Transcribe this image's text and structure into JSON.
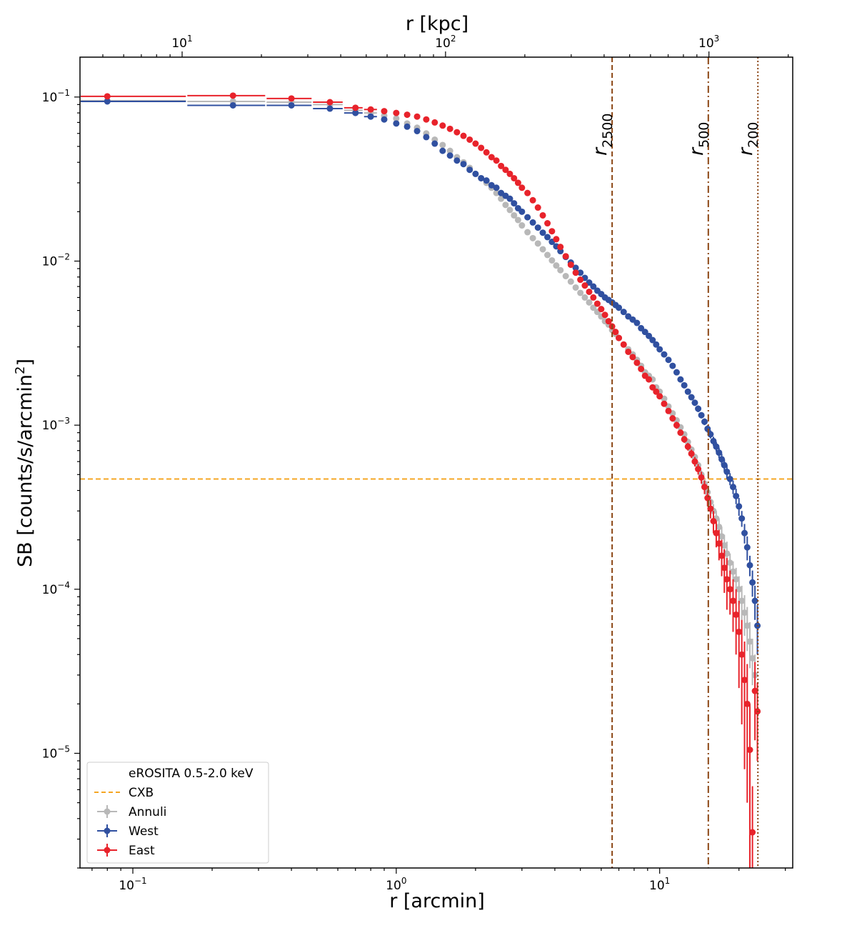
{
  "chart_data": {
    "type": "scatter",
    "xlabel": "r [arcmin]",
    "x2label": "r [kpc]",
    "ylabel_main": "SB [counts/s/arcmin",
    "ylabel_sup": "2",
    "ylabel_end": "]",
    "xscale": "log",
    "yscale": "log",
    "xlim": [
      0.063,
      32
    ],
    "ylim": [
      2e-06,
      0.175
    ],
    "x_ticks": [
      {
        "value": 0.1,
        "base": "10",
        "exp": "−1"
      },
      {
        "value": 1,
        "base": "10",
        "exp": "0"
      },
      {
        "value": 10,
        "base": "10",
        "exp": "1"
      }
    ],
    "y_ticks": [
      {
        "value": 0.1,
        "base": "10",
        "exp": "−1"
      },
      {
        "value": 0.01,
        "base": "10",
        "exp": "−2"
      },
      {
        "value": 0.001,
        "base": "10",
        "exp": "−3"
      },
      {
        "value": 0.0001,
        "base": "10",
        "exp": "−4"
      },
      {
        "value": 1e-05,
        "base": "10",
        "exp": "−5"
      }
    ],
    "top_axis_kpc_per_arcmin": 65,
    "top_ticks": [
      {
        "value": 10,
        "base": "10",
        "exp": "1"
      },
      {
        "value": 100,
        "base": "10",
        "exp": "2"
      },
      {
        "value": 1000,
        "base": "10",
        "exp": "3"
      }
    ],
    "cxb_level": 0.00047,
    "vlines": [
      {
        "name": "r2500",
        "label_main": "r",
        "label_sub": "2500",
        "x": 6.6,
        "style": "dashed"
      },
      {
        "name": "r500",
        "label_main": "r",
        "label_sub": "500",
        "x": 15.3,
        "style": "dashdot"
      },
      {
        "name": "r200",
        "label_main": "r",
        "label_sub": "200",
        "x": 23.6,
        "style": "dotted"
      }
    ],
    "legend": {
      "title": "eROSITA 0.5-2.0 keV",
      "position": "lower left",
      "entries": [
        {
          "key": "cxb",
          "label": "CXB"
        },
        {
          "key": "annuli",
          "label": "Annuli"
        },
        {
          "key": "west",
          "label": "West"
        },
        {
          "key": "east",
          "label": "East"
        }
      ]
    },
    "colors": {
      "cxb": "#f5a623",
      "annuli": "#b8b8b8",
      "west": "#3050a0",
      "east": "#e8232b",
      "vline": "#8b4513"
    },
    "series": [
      {
        "name": "Annuli",
        "key": "annuli",
        "x": [
          0.08,
          0.24,
          0.4,
          0.56,
          0.7,
          0.8,
          0.9,
          1.0,
          1.1,
          1.2,
          1.3,
          1.4,
          1.5,
          1.6,
          1.7,
          1.8,
          1.9,
          2.0,
          2.1,
          2.2,
          2.3,
          2.4,
          2.5,
          2.6,
          2.7,
          2.8,
          2.9,
          3.0,
          3.15,
          3.3,
          3.45,
          3.6,
          3.75,
          3.9,
          4.05,
          4.2,
          4.4,
          4.6,
          4.8,
          5.0,
          5.2,
          5.4,
          5.6,
          5.8,
          6.0,
          6.2,
          6.4,
          6.6,
          6.8,
          7.0,
          7.3,
          7.6,
          7.9,
          8.2,
          8.5,
          8.8,
          9.1,
          9.4,
          9.7,
          10.0,
          10.4,
          10.8,
          11.2,
          11.6,
          12.0,
          12.4,
          12.8,
          13.2,
          13.6,
          14.0,
          14.4,
          14.8,
          15.2,
          15.6,
          16.0,
          16.4,
          16.8,
          17.2,
          17.6,
          18.0,
          18.5,
          19.0,
          19.5,
          20.0,
          20.5,
          21.0,
          21.5,
          22.0,
          22.5,
          23.0,
          23.5
        ],
        "y": [
          0.095,
          0.094,
          0.093,
          0.09,
          0.083,
          0.08,
          0.077,
          0.074,
          0.069,
          0.065,
          0.06,
          0.055,
          0.051,
          0.047,
          0.043,
          0.04,
          0.037,
          0.034,
          0.032,
          0.03,
          0.028,
          0.026,
          0.024,
          0.022,
          0.0205,
          0.019,
          0.0178,
          0.0165,
          0.015,
          0.0138,
          0.0128,
          0.0118,
          0.0109,
          0.0101,
          0.0094,
          0.0088,
          0.0081,
          0.0075,
          0.0069,
          0.0064,
          0.006,
          0.0056,
          0.0052,
          0.0049,
          0.0046,
          0.0043,
          0.0041,
          0.0038,
          0.0036,
          0.0034,
          0.0031,
          0.0029,
          0.0027,
          0.0025,
          0.0023,
          0.0021,
          0.002,
          0.0019,
          0.0017,
          0.0016,
          0.00145,
          0.0013,
          0.00118,
          0.00107,
          0.00097,
          0.00088,
          0.00079,
          0.00071,
          0.00064,
          0.00057,
          0.0005,
          0.00044,
          0.00039,
          0.00034,
          0.0003,
          0.00027,
          0.00024,
          0.00021,
          0.000185,
          0.000165,
          0.000145,
          0.000128,
          0.000115,
          0.0001,
          8.5e-05,
          7.2e-05,
          6e-05,
          4.8e-05,
          3.8e-05,
          3e-05,
          1.8e-05
        ],
        "yerr": [
          0.003,
          0.002,
          0.002,
          0.002,
          0.0015,
          0.0015,
          0.0012,
          0.0012,
          0.001,
          0.001,
          0.001,
          0.0009,
          0.0008,
          0.0007,
          0.0007,
          0.0006,
          0.0006,
          0.0005,
          0.0005,
          0.0005,
          0.0004,
          0.0004,
          0.0004,
          0.0003,
          0.0003,
          0.0003,
          0.0003,
          0.0003,
          0.0002,
          0.0002,
          0.0002,
          0.0002,
          0.0002,
          0.00015,
          0.00015,
          0.00015,
          0.00012,
          0.00012,
          0.0001,
          0.0001,
          0.0001,
          9e-05,
          9e-05,
          8e-05,
          8e-05,
          7e-05,
          7e-05,
          7e-05,
          6e-05,
          6e-05,
          5e-05,
          5e-05,
          5e-05,
          5e-05,
          4e-05,
          4e-05,
          4e-05,
          4e-05,
          4e-05,
          4e-05,
          4e-05,
          4e-05,
          4e-05,
          4e-05,
          4e-05,
          4e-05,
          4e-05,
          3e-05,
          3e-05,
          3e-05,
          3e-05,
          3e-05,
          3e-05,
          3e-05,
          3e-05,
          3e-05,
          3e-05,
          3e-05,
          3e-05,
          3e-05,
          2e-05,
          2e-05,
          2e-05,
          2e-05,
          2e-05,
          2e-05,
          1.8e-05,
          1.5e-05,
          1.2e-05,
          1e-05,
          8e-06
        ]
      },
      {
        "name": "West",
        "key": "west",
        "x": [
          0.08,
          0.24,
          0.4,
          0.56,
          0.7,
          0.8,
          0.9,
          1.0,
          1.1,
          1.2,
          1.3,
          1.4,
          1.5,
          1.6,
          1.7,
          1.8,
          1.9,
          2.0,
          2.1,
          2.2,
          2.3,
          2.4,
          2.5,
          2.6,
          2.7,
          2.8,
          2.9,
          3.0,
          3.15,
          3.3,
          3.45,
          3.6,
          3.75,
          3.9,
          4.05,
          4.2,
          4.4,
          4.6,
          4.8,
          5.0,
          5.2,
          5.4,
          5.6,
          5.8,
          6.0,
          6.2,
          6.4,
          6.6,
          6.8,
          7.0,
          7.3,
          7.6,
          7.9,
          8.2,
          8.5,
          8.8,
          9.1,
          9.4,
          9.7,
          10.0,
          10.4,
          10.8,
          11.2,
          11.6,
          12.0,
          12.4,
          12.8,
          13.2,
          13.6,
          14.0,
          14.4,
          14.8,
          15.2,
          15.6,
          16.0,
          16.4,
          16.8,
          17.2,
          17.6,
          18.0,
          18.5,
          19.0,
          19.5,
          20.0,
          20.5,
          21.0,
          21.5,
          22.0,
          22.5,
          23.0,
          23.5
        ],
        "y": [
          0.094,
          0.089,
          0.089,
          0.085,
          0.08,
          0.076,
          0.073,
          0.069,
          0.066,
          0.062,
          0.057,
          0.052,
          0.047,
          0.044,
          0.041,
          0.039,
          0.036,
          0.034,
          0.032,
          0.031,
          0.029,
          0.028,
          0.026,
          0.025,
          0.024,
          0.0225,
          0.021,
          0.02,
          0.0185,
          0.0172,
          0.016,
          0.0149,
          0.014,
          0.0131,
          0.0123,
          0.0115,
          0.0106,
          0.0098,
          0.0091,
          0.0085,
          0.0079,
          0.0074,
          0.007,
          0.0066,
          0.0063,
          0.006,
          0.0058,
          0.0056,
          0.0054,
          0.0052,
          0.0049,
          0.0046,
          0.0044,
          0.0042,
          0.0039,
          0.0037,
          0.0035,
          0.0033,
          0.0031,
          0.0029,
          0.0027,
          0.0025,
          0.0023,
          0.0021,
          0.0019,
          0.00175,
          0.0016,
          0.00148,
          0.00137,
          0.00126,
          0.00115,
          0.00105,
          0.00095,
          0.00088,
          0.0008,
          0.00074,
          0.00068,
          0.00062,
          0.00057,
          0.00052,
          0.00047,
          0.00042,
          0.00037,
          0.00032,
          0.00027,
          0.00022,
          0.00018,
          0.00014,
          0.00011,
          8.5e-05,
          6e-05
        ],
        "yerr": [
          0.003,
          0.002,
          0.002,
          0.002,
          0.0015,
          0.0015,
          0.0013,
          0.0012,
          0.0011,
          0.001,
          0.001,
          0.0009,
          0.0009,
          0.0008,
          0.0008,
          0.0007,
          0.0007,
          0.0006,
          0.0006,
          0.0006,
          0.0005,
          0.0005,
          0.0005,
          0.0005,
          0.0004,
          0.0004,
          0.0004,
          0.0004,
          0.0003,
          0.0003,
          0.0003,
          0.0003,
          0.0003,
          0.0003,
          0.00025,
          0.00025,
          0.0002,
          0.0002,
          0.0002,
          0.0002,
          0.00018,
          0.00017,
          0.00016,
          0.00015,
          0.00014,
          0.00013,
          0.00012,
          0.00012,
          0.00011,
          0.00011,
          0.0001,
          0.0001,
          0.0001,
          9e-05,
          9e-05,
          8e-05,
          8e-05,
          8e-05,
          8e-05,
          7e-05,
          7e-05,
          7e-05,
          7e-05,
          7e-05,
          6e-05,
          6e-05,
          6e-05,
          6e-05,
          6e-05,
          6e-05,
          5e-05,
          5e-05,
          5e-05,
          5e-05,
          5e-05,
          5e-05,
          5e-05,
          5e-05,
          5e-05,
          5e-05,
          4e-05,
          4e-05,
          4e-05,
          4e-05,
          3e-05,
          3e-05,
          3e-05,
          2e-05,
          2e-05,
          2e-05,
          2e-05
        ]
      },
      {
        "name": "East",
        "key": "east",
        "x": [
          0.08,
          0.24,
          0.4,
          0.56,
          0.7,
          0.8,
          0.9,
          1.0,
          1.1,
          1.2,
          1.3,
          1.4,
          1.5,
          1.6,
          1.7,
          1.8,
          1.9,
          2.0,
          2.1,
          2.2,
          2.3,
          2.4,
          2.5,
          2.6,
          2.7,
          2.8,
          2.9,
          3.0,
          3.15,
          3.3,
          3.45,
          3.6,
          3.75,
          3.9,
          4.05,
          4.2,
          4.4,
          4.6,
          4.8,
          5.0,
          5.2,
          5.4,
          5.6,
          5.8,
          6.0,
          6.2,
          6.4,
          6.6,
          6.8,
          7.0,
          7.3,
          7.6,
          7.9,
          8.2,
          8.5,
          8.8,
          9.1,
          9.4,
          9.7,
          10.0,
          10.4,
          10.8,
          11.2,
          11.6,
          12.0,
          12.4,
          12.8,
          13.2,
          13.6,
          14.0,
          14.4,
          14.8,
          15.2,
          15.6,
          16.0,
          16.4,
          16.8,
          17.2,
          17.6,
          18.0,
          18.5,
          19.0,
          19.5,
          20.0,
          20.5,
          21.0,
          21.5,
          22.0,
          22.5,
          23.0,
          23.5
        ],
        "y": [
          0.101,
          0.102,
          0.098,
          0.093,
          0.086,
          0.084,
          0.082,
          0.08,
          0.078,
          0.076,
          0.073,
          0.07,
          0.067,
          0.064,
          0.061,
          0.058,
          0.055,
          0.052,
          0.049,
          0.046,
          0.043,
          0.041,
          0.038,
          0.036,
          0.034,
          0.032,
          0.03,
          0.028,
          0.026,
          0.0235,
          0.0212,
          0.019,
          0.017,
          0.0152,
          0.0136,
          0.0122,
          0.0107,
          0.0095,
          0.0085,
          0.0077,
          0.0071,
          0.0065,
          0.006,
          0.0055,
          0.0051,
          0.0047,
          0.0043,
          0.004,
          0.0037,
          0.0034,
          0.0031,
          0.0028,
          0.0026,
          0.0024,
          0.0022,
          0.002,
          0.0019,
          0.0017,
          0.0016,
          0.0015,
          0.00135,
          0.00122,
          0.0011,
          0.001,
          0.0009,
          0.00082,
          0.00074,
          0.00067,
          0.0006,
          0.00054,
          0.00048,
          0.00042,
          0.00036,
          0.00031,
          0.00026,
          0.00022,
          0.00019,
          0.00016,
          0.000135,
          0.000115,
          0.0001,
          8.5e-05,
          7e-05,
          5.5e-05,
          4e-05,
          2.8e-05,
          2e-05,
          1.05e-05,
          3.3e-06,
          2.4e-05,
          1.8e-05
        ],
        "yerr": [
          0.003,
          0.002,
          0.002,
          0.002,
          0.0015,
          0.0015,
          0.0014,
          0.0013,
          0.0012,
          0.0012,
          0.0011,
          0.001,
          0.001,
          0.0009,
          0.0009,
          0.0008,
          0.0008,
          0.0008,
          0.0007,
          0.0007,
          0.0007,
          0.0006,
          0.0006,
          0.0006,
          0.0005,
          0.0005,
          0.0005,
          0.0005,
          0.0004,
          0.0004,
          0.0004,
          0.0003,
          0.0003,
          0.0003,
          0.0003,
          0.0002,
          0.0002,
          0.0002,
          0.0002,
          0.00015,
          0.00015,
          0.00014,
          0.00013,
          0.00012,
          0.00011,
          0.0001,
          0.0001,
          9e-05,
          9e-05,
          8e-05,
          8e-05,
          7e-05,
          7e-05,
          6e-05,
          6e-05,
          6e-05,
          5e-05,
          5e-05,
          5e-05,
          5e-05,
          5e-05,
          5e-05,
          5e-05,
          5e-05,
          4e-05,
          4e-05,
          4e-05,
          4e-05,
          4e-05,
          4e-05,
          4e-05,
          4e-05,
          4e-05,
          4e-05,
          4e-05,
          4e-05,
          4e-05,
          4e-05,
          4e-05,
          4e-05,
          3e-05,
          3e-05,
          3e-05,
          3e-05,
          2.5e-05,
          2e-05,
          1.5e-05,
          9.5e-06,
          3e-06,
          1.2e-05,
          9e-06
        ]
      }
    ]
  }
}
